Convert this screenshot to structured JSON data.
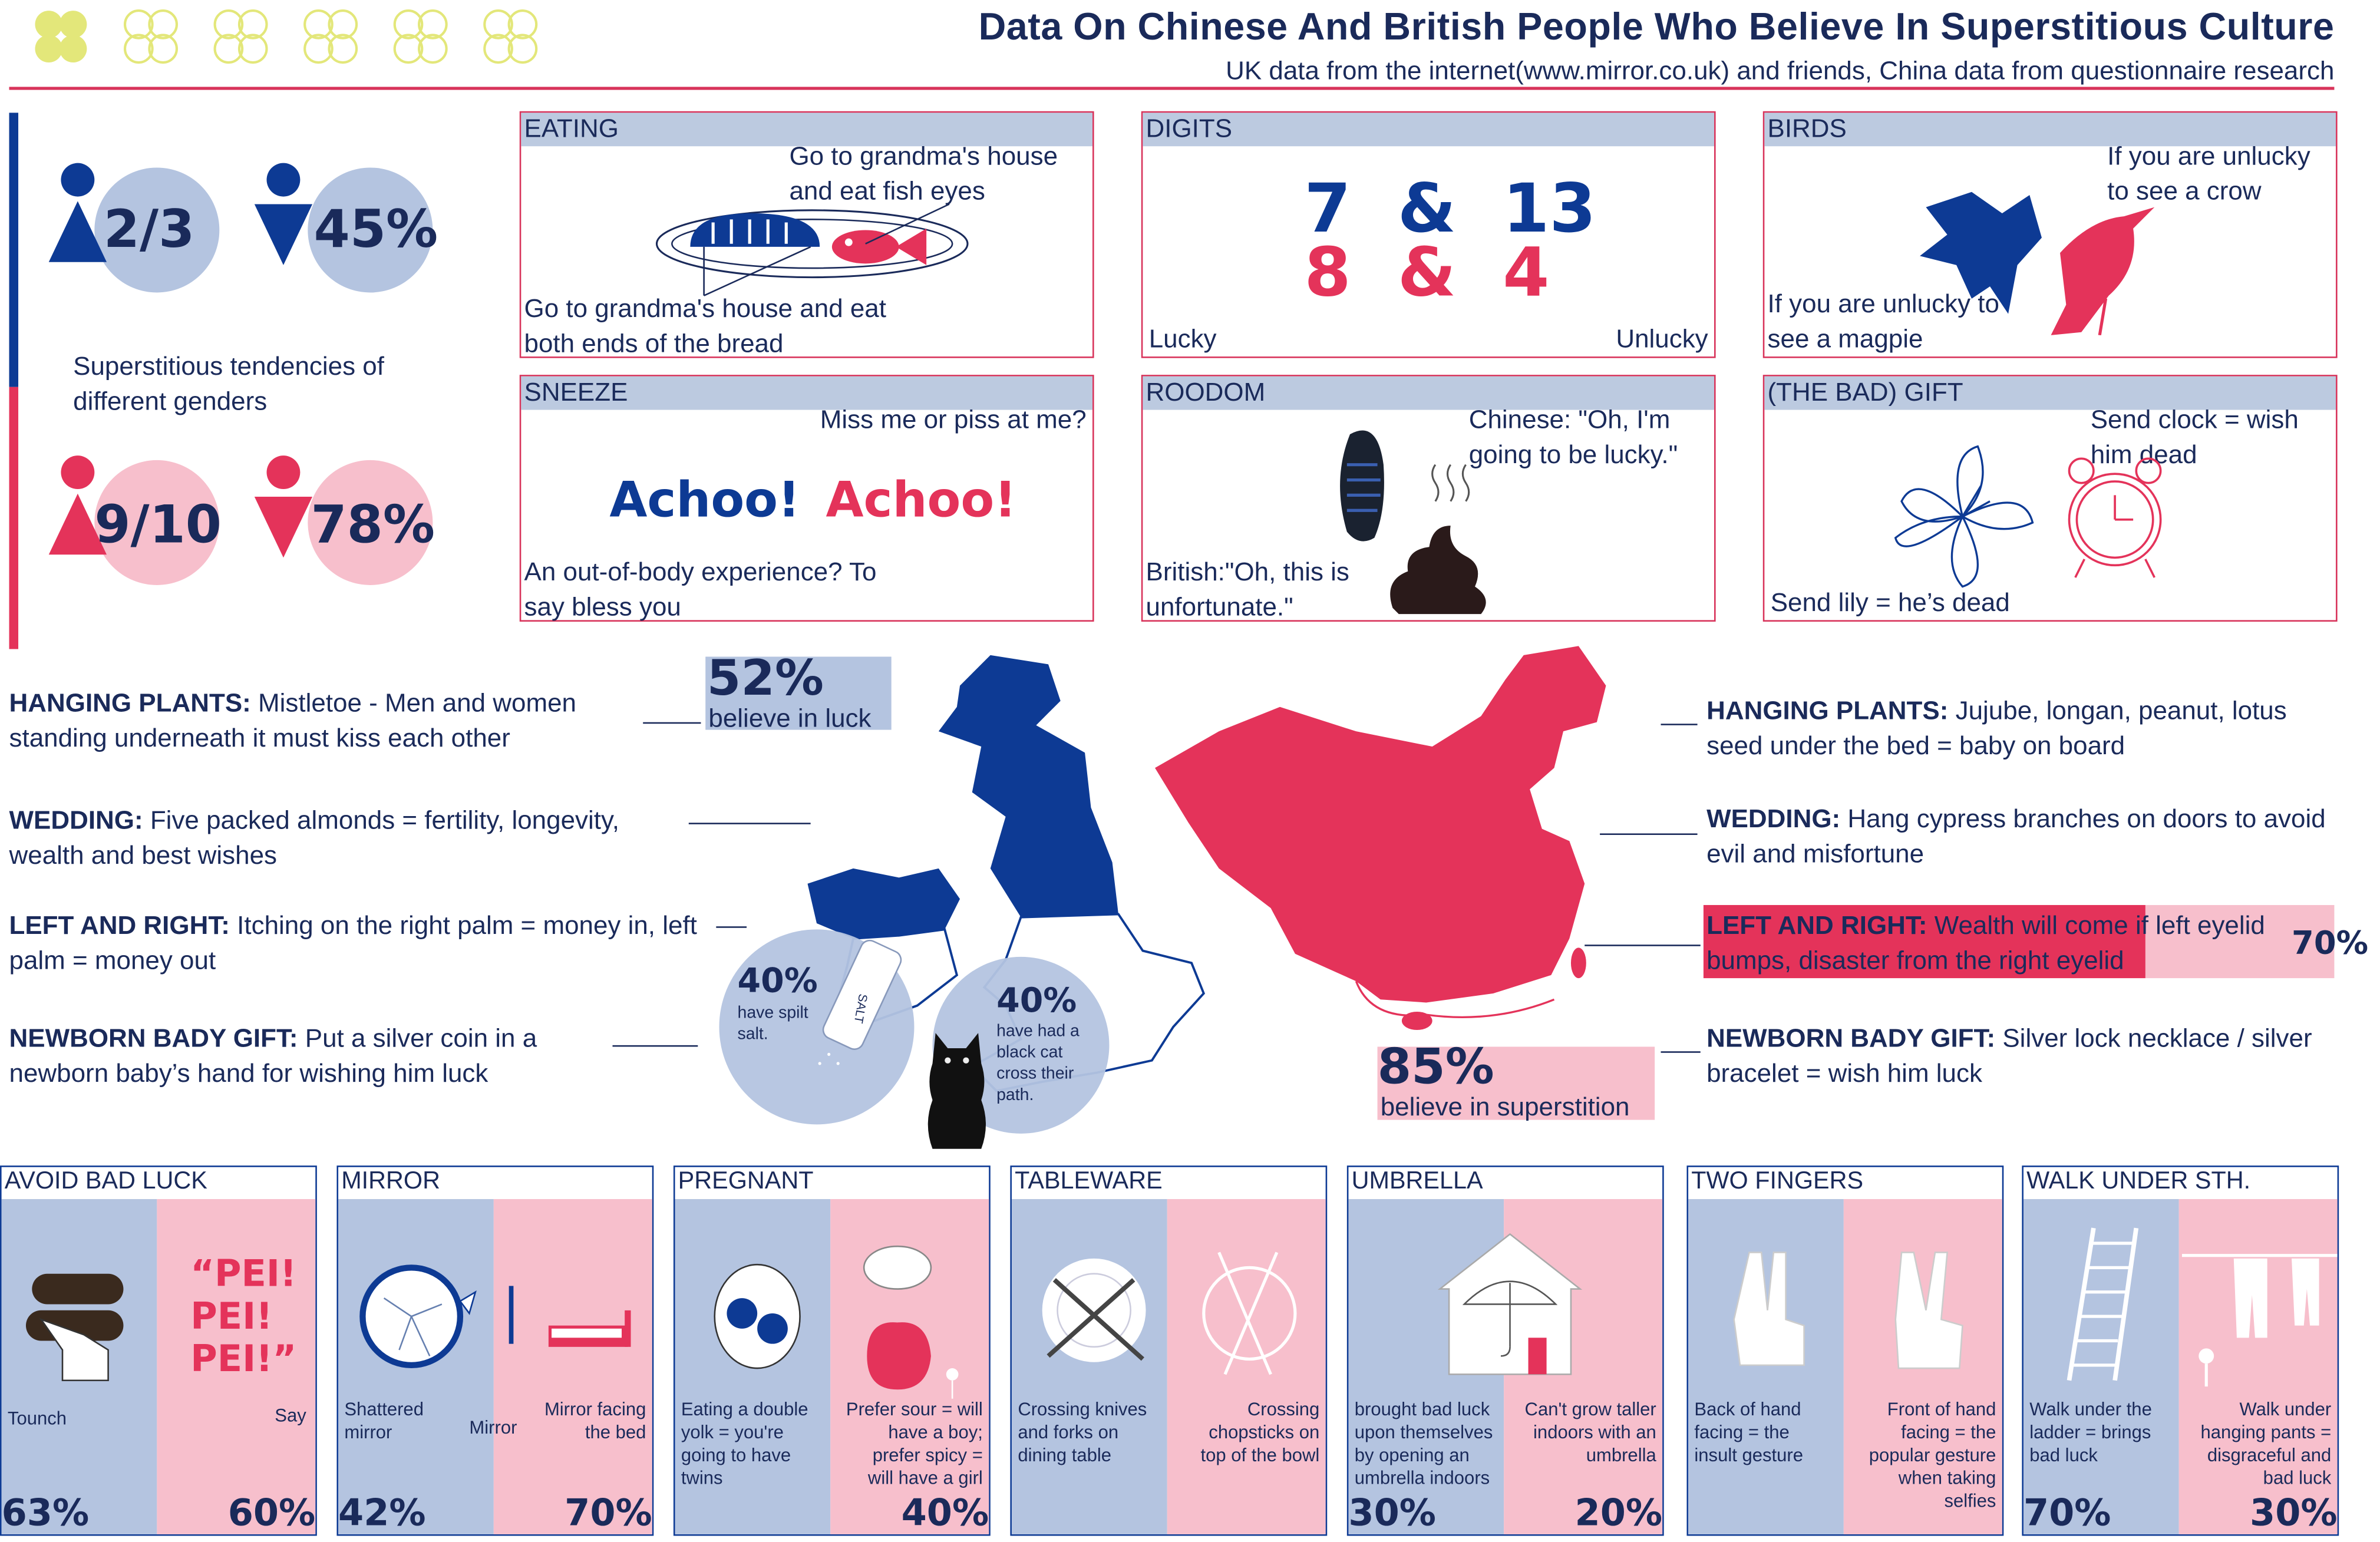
{
  "header": {
    "title": "Data On Chinese And British People Who Believe In Superstitious Culture",
    "subtitle": "UK data from the internet(www.mirror.co.uk) and friends, China data from questionnaire research"
  },
  "genders": {
    "caption": "Superstitious tendencies of different genders",
    "uk_female": "2/3",
    "uk_male": "45%",
    "cn_female": "9/10",
    "cn_male": "78%"
  },
  "boxes": {
    "eating": {
      "title": "EATING",
      "top_text": "Go to grandma's house and eat fish eyes",
      "bottom_text": "Go to grandma's house and eat both ends of the bread"
    },
    "digits": {
      "title": "DIGITS",
      "uk": "7  &  13",
      "cn": "8  &  4",
      "lucky": "Lucky",
      "unlucky": "Unlucky"
    },
    "birds": {
      "title": "BIRDS",
      "top_text": "If you are unlucky to see a crow",
      "bottom_text": "If you are unlucky to see a magpie"
    },
    "sneeze": {
      "title": "SNEEZE",
      "top_text": "Miss me or piss at me?",
      "achoo1": "Achoo!",
      "achoo2": "Achoo!",
      "bottom_text": "An out-of-body experience? To say bless you"
    },
    "roodom": {
      "title": "ROODOM",
      "chinese": "Chinese: \"Oh, I'm going to be lucky.\"",
      "british": "British:\"Oh, this is unfortunate.\""
    },
    "gift": {
      "title": "(THE BAD) GIFT",
      "clock": "Send clock = wish him dead",
      "lily": "Send lily = he’s dead"
    }
  },
  "uk": {
    "luck_pct": "52%",
    "luck_label": "believe in luck",
    "salt_pct": "40%",
    "salt_label": "have spilt salt.",
    "salt_pack": "SALT",
    "cat_pct": "40%",
    "cat_label": "have had a black cat cross their path.",
    "notes": [
      {
        "head": "HANGING PLANTS:",
        "text": " Mistletoe - Men and women standing underneath it must kiss each other"
      },
      {
        "head": "WEDDING:",
        "text": " Five packed almonds = fertility, longevity, wealth and best wishes"
      },
      {
        "head": "LEFT AND RIGHT:",
        "text": " Itching on the right palm = money in, left palm = money out"
      },
      {
        "head": "NEWBORN BADY GIFT:",
        "text": " Put a silver coin in a newborn baby’s hand for wishing him luck"
      }
    ]
  },
  "cn": {
    "sup_pct": "85%",
    "sup_label": "believe in superstition",
    "eyelid_pct": "70%",
    "eyelid_value": 0.7,
    "notes": [
      {
        "head": "HANGING PLANTS:",
        "text": " Jujube, longan, peanut, lotus seed under the bed = baby on board"
      },
      {
        "head": "WEDDING:",
        "text": " Hang cypress branches on doors to avoid evil and misfortune"
      },
      {
        "head": "LEFT AND RIGHT:",
        "text": " Wealth will come if left eyelid bumps, disaster from the right eyelid"
      },
      {
        "head": "NEWBORN BADY GIFT:",
        "text": " Silver lock necklace / silver bracelet = wish him luck"
      }
    ]
  },
  "panels": [
    {
      "title": "AVOID BAD LUCK",
      "left": "Tounch",
      "right": "Say",
      "right_big": "“PEI!\nPEI!\nPEI!”",
      "uk_pct": "63%",
      "cn_pct": "60%"
    },
    {
      "title": "MIRROR",
      "left": "Shattered mirror",
      "mid": "Mirror",
      "right": "Mirror facing the bed",
      "uk_pct": "42%",
      "cn_pct": "70%"
    },
    {
      "title": "PREGNANT",
      "left": "Eating a double yolk = you're going to have twins",
      "right": "Prefer sour = will have a boy; prefer spicy = will have a girl",
      "uk_pct": "",
      "cn_pct": "40%"
    },
    {
      "title": "TABLEWARE",
      "left": "Crossing knives and forks on dining table",
      "right": "Crossing chopsticks on top of the bowl",
      "uk_pct": "",
      "cn_pct": ""
    },
    {
      "title": "UMBRELLA",
      "left": "brought bad luck upon themselves by opening an umbrella indoors",
      "right": "Can't grow taller indoors with an umbrella",
      "uk_pct": "30%",
      "cn_pct": "20%"
    },
    {
      "title": "TWO FINGERS",
      "left": "Back of hand facing = the insult gesture",
      "right": "Front of hand facing = the popular gesture when taking selfies",
      "uk_pct": "",
      "cn_pct": ""
    },
    {
      "title": "WALK UNDER STH.",
      "left": "Walk under the ladder = brings bad luck",
      "right": "Walk under hanging pants = disgraceful and bad luck",
      "uk_pct": "70%",
      "cn_pct": "30%"
    }
  ],
  "colors": {
    "navy": "#0d3a94",
    "pink": "#e4335a",
    "light_blue": "#b4c4e0",
    "light_pink": "#f7bfcc",
    "clover": "#e3e77a"
  },
  "icons": [
    "clover-icon",
    "female-icon",
    "male-icon",
    "fish-icon",
    "bread-icon",
    "crow-icon",
    "magpie-icon",
    "shoe-sole-icon",
    "poop-icon",
    "lily-icon",
    "clock-icon",
    "salt-icon",
    "black-cat-icon",
    "wood-log-icon",
    "mirror-icon",
    "egg-icon",
    "plate-icon",
    "umbrella-icon",
    "hand-icon",
    "ladder-icon",
    "pants-icon"
  ]
}
